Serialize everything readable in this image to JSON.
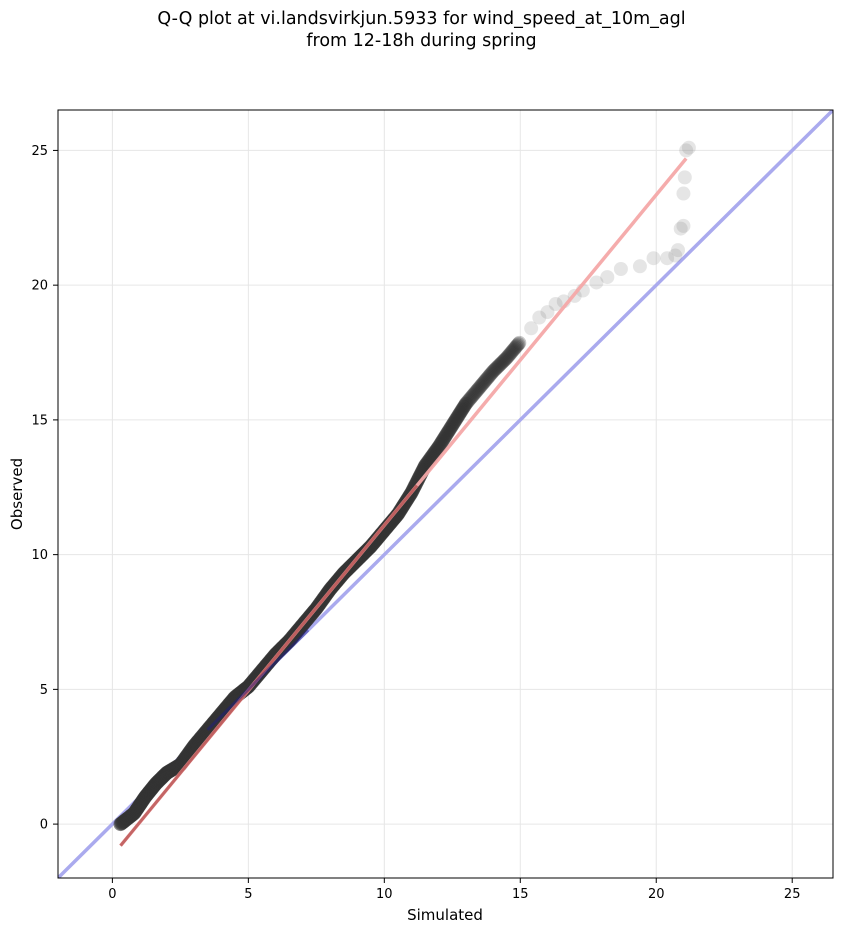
{
  "chart_data": {
    "type": "scatter",
    "title_line1": "Q-Q plot at vi.landsvirkjun.5933 for wind_speed_at_10m_agl",
    "title_line2": "from 12-18h during spring",
    "xlabel": "Simulated",
    "ylabel": "Observed",
    "xlim": [
      -2,
      26.5
    ],
    "ylim": [
      -2,
      26.5
    ],
    "xticks": [
      0,
      5,
      10,
      15,
      20,
      25
    ],
    "yticks": [
      0,
      5,
      10,
      15,
      20,
      25
    ],
    "grid": true,
    "identity_line": {
      "color": "#aaaaee",
      "from": [
        -2,
        -2
      ],
      "to": [
        26.5,
        26.5
      ]
    },
    "fit_line": {
      "color": "#f4a8a8",
      "from": [
        0.3,
        -0.8
      ],
      "to": [
        21.1,
        24.7
      ]
    },
    "main_quantiles": {
      "x": [
        0.3,
        0.8,
        1.2,
        1.6,
        2.0,
        2.5,
        3.0,
        3.5,
        4.0,
        4.5,
        5.0,
        5.5,
        6.0,
        6.5,
        7.0,
        7.5,
        8.0,
        8.5,
        9.0,
        9.5,
        10.0,
        10.5,
        11.0,
        11.5,
        12.0,
        12.5,
        13.0,
        13.5,
        14.0,
        14.5,
        15.0
      ],
      "y": [
        0.0,
        0.4,
        1.0,
        1.5,
        1.9,
        2.2,
        2.9,
        3.5,
        4.1,
        4.7,
        5.1,
        5.7,
        6.3,
        6.8,
        7.4,
        8.0,
        8.7,
        9.3,
        9.8,
        10.3,
        10.9,
        11.5,
        12.3,
        13.3,
        14.0,
        14.8,
        15.6,
        16.2,
        16.8,
        17.3,
        17.9
      ]
    },
    "tail_points": [
      [
        15.4,
        18.4
      ],
      [
        15.7,
        18.8
      ],
      [
        16.0,
        19.0
      ],
      [
        16.3,
        19.3
      ],
      [
        16.6,
        19.4
      ],
      [
        17.0,
        19.6
      ],
      [
        17.3,
        19.8
      ],
      [
        17.8,
        20.1
      ],
      [
        18.2,
        20.3
      ],
      [
        18.7,
        20.6
      ],
      [
        19.4,
        20.7
      ],
      [
        19.9,
        21.0
      ],
      [
        20.4,
        21.0
      ],
      [
        20.7,
        21.1
      ],
      [
        20.8,
        21.3
      ],
      [
        20.9,
        22.1
      ],
      [
        21.0,
        22.2
      ],
      [
        21.0,
        23.4
      ],
      [
        21.05,
        24.0
      ],
      [
        21.1,
        25.0
      ],
      [
        21.2,
        25.1
      ]
    ],
    "point_color": "#333333"
  }
}
